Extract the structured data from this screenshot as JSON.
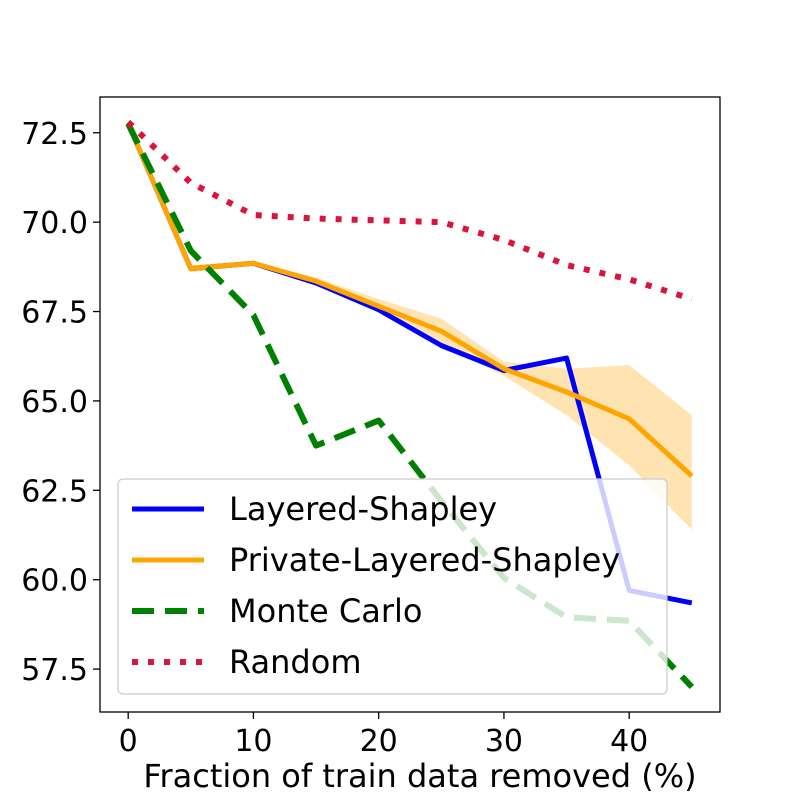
{
  "chart_data": {
    "type": "line",
    "title": "",
    "xlabel": "Fraction of train data removed (%)",
    "ylabel": "",
    "xlim": [
      -2.25,
      47.25
    ],
    "ylim": [
      56.3,
      73.5
    ],
    "xticks": [
      0,
      10,
      20,
      30,
      40
    ],
    "xtick_labels": [
      "0",
      "10",
      "20",
      "30",
      "40"
    ],
    "yticks": [
      57.5,
      60.0,
      62.5,
      65.0,
      67.5,
      70.0,
      72.5
    ],
    "ytick_labels": [
      "57.5",
      "60.0",
      "62.5",
      "65.0",
      "67.5",
      "70.0",
      "72.5"
    ],
    "x": [
      0,
      5,
      10,
      15,
      20,
      25,
      30,
      35,
      40,
      45
    ],
    "series": [
      {
        "name": "Layered-Shapley",
        "color": "#0000ff",
        "style": "solid",
        "values": [
          72.75,
          68.7,
          68.85,
          68.3,
          67.55,
          66.55,
          65.85,
          66.2,
          59.7,
          59.35
        ]
      },
      {
        "name": "Private-Layered-Shapley",
        "color": "#ffa500",
        "style": "solid",
        "values": [
          72.75,
          68.7,
          68.85,
          68.35,
          67.65,
          66.95,
          65.9,
          65.25,
          64.5,
          62.9
        ],
        "band_lower": [
          72.75,
          68.6,
          68.8,
          68.25,
          67.5,
          66.6,
          65.7,
          64.6,
          63.2,
          61.4
        ],
        "band_upper": [
          72.75,
          68.8,
          68.9,
          68.45,
          67.85,
          67.3,
          66.1,
          65.9,
          66.0,
          64.6
        ]
      },
      {
        "name": "Monte Carlo",
        "color": "#008000",
        "style": "dashed",
        "values": [
          72.75,
          69.2,
          67.4,
          63.75,
          64.45,
          62.2,
          60.05,
          58.95,
          58.85,
          57.0
        ]
      },
      {
        "name": "Random",
        "color": "#dc143c",
        "style": "dotted",
        "values": [
          72.8,
          71.1,
          70.2,
          70.1,
          70.05,
          70.0,
          69.5,
          68.8,
          68.4,
          67.85
        ]
      }
    ],
    "legend_position": "lower-left"
  }
}
